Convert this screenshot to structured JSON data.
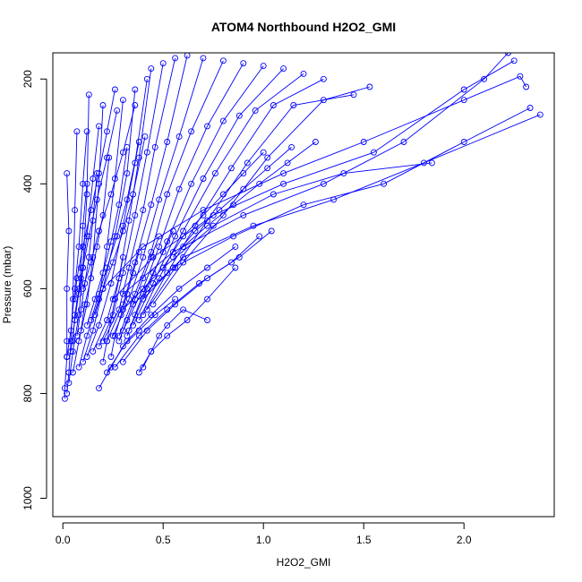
{
  "chart_data": {
    "type": "scatter",
    "title": "ATOM4 Northbound H2O2_GMI",
    "xlabel": "H2O2_GMI",
    "ylabel": "Pressure (mbar)",
    "xlim": [
      -0.05,
      2.45
    ],
    "ylim": [
      1035,
      150
    ],
    "y_reversed": true,
    "grid": false,
    "legend": "none",
    "series_color": "#0000ff",
    "marker": "open-circle",
    "connected": true,
    "xticks": [
      0.0,
      0.5,
      1.0,
      1.5,
      2.0
    ],
    "xtick_labels": [
      "0.0",
      "0.5",
      "1.0",
      "1.5",
      "2.0"
    ],
    "yticks": [
      200,
      400,
      600,
      800,
      1000
    ],
    "ytick_labels": [
      "200",
      "400",
      "600",
      "800",
      "1000"
    ],
    "profiles": [
      {
        "x": [
          0.01,
          0.01,
          0.02,
          0.02,
          0.02,
          0.03,
          0.02
        ],
        "y": [
          810,
          790,
          730,
          700,
          600,
          490,
          380
        ]
      },
      {
        "x": [
          0.02,
          0.03,
          0.04,
          0.05,
          0.06,
          0.07
        ],
        "y": [
          800,
          760,
          700,
          620,
          450,
          300
        ]
      },
      {
        "x": [
          0.03,
          0.05,
          0.08,
          0.1,
          0.12,
          0.13
        ],
        "y": [
          780,
          720,
          650,
          560,
          420,
          230
        ]
      },
      {
        "x": [
          0.05,
          0.08,
          0.12,
          0.15,
          0.18,
          0.2
        ],
        "y": [
          760,
          700,
          630,
          540,
          400,
          250
        ]
      },
      {
        "x": [
          0.08,
          0.12,
          0.18,
          0.22,
          0.26,
          0.3
        ],
        "y": [
          750,
          690,
          620,
          520,
          390,
          240
        ]
      },
      {
        "x": [
          0.1,
          0.15,
          0.2,
          0.26,
          0.32,
          0.36
        ],
        "y": [
          740,
          680,
          600,
          500,
          380,
          220
        ]
      },
      {
        "x": [
          0.12,
          0.18,
          0.24,
          0.3,
          0.36,
          0.42
        ],
        "y": [
          730,
          670,
          590,
          480,
          360,
          200
        ]
      },
      {
        "x": [
          0.15,
          0.22,
          0.28,
          0.33,
          0.38,
          0.44
        ],
        "y": [
          720,
          660,
          580,
          470,
          350,
          180
        ]
      },
      {
        "x": [
          0.18,
          0.25,
          0.3,
          0.36,
          0.42,
          0.5
        ],
        "y": [
          710,
          650,
          570,
          460,
          340,
          170
        ]
      },
      {
        "x": [
          0.2,
          0.28,
          0.33,
          0.4,
          0.46,
          0.56
        ],
        "y": [
          700,
          640,
          560,
          450,
          330,
          160
        ]
      },
      {
        "x": [
          0.22,
          0.3,
          0.36,
          0.44,
          0.52,
          0.62
        ],
        "y": [
          700,
          630,
          550,
          440,
          320,
          155
        ]
      },
      {
        "x": [
          0.25,
          0.33,
          0.4,
          0.48,
          0.58,
          0.7
        ],
        "y": [
          690,
          620,
          540,
          430,
          310,
          160
        ]
      },
      {
        "x": [
          0.28,
          0.36,
          0.44,
          0.52,
          0.64,
          0.8
        ],
        "y": [
          690,
          610,
          530,
          420,
          300,
          165
        ]
      },
      {
        "x": [
          0.3,
          0.4,
          0.48,
          0.58,
          0.72,
          0.9
        ],
        "y": [
          680,
          600,
          520,
          410,
          290,
          170
        ]
      },
      {
        "x": [
          0.33,
          0.42,
          0.52,
          0.64,
          0.8,
          1.0
        ],
        "y": [
          680,
          600,
          510,
          400,
          280,
          175
        ]
      },
      {
        "x": [
          0.35,
          0.45,
          0.56,
          0.7,
          0.88,
          1.1
        ],
        "y": [
          670,
          590,
          500,
          390,
          270,
          180
        ]
      },
      {
        "x": [
          0.38,
          0.48,
          0.6,
          0.76,
          0.96,
          1.2
        ],
        "y": [
          660,
          580,
          490,
          380,
          260,
          190
        ]
      },
      {
        "x": [
          0.4,
          0.52,
          0.66,
          0.84,
          1.05,
          1.3
        ],
        "y": [
          650,
          570,
          480,
          370,
          250,
          200
        ]
      },
      {
        "x": [
          0.42,
          0.56,
          0.72,
          0.92,
          1.15,
          1.45
        ],
        "y": [
          640,
          560,
          470,
          360,
          250,
          230
        ]
      },
      {
        "x": [
          0.45,
          0.6,
          0.8,
          1.02,
          1.3,
          1.53
        ],
        "y": [
          630,
          550,
          460,
          350,
          240,
          215
        ]
      },
      {
        "x": [
          0.3,
          0.5,
          0.75,
          1.05,
          1.4,
          1.84
        ],
        "y": [
          640,
          560,
          480,
          420,
          380,
          360
        ]
      },
      {
        "x": [
          0.35,
          0.55,
          0.85,
          1.2,
          1.6,
          2.0,
          2.33
        ],
        "y": [
          630,
          560,
          500,
          440,
          400,
          320,
          255
        ]
      },
      {
        "x": [
          0.4,
          0.6,
          0.95,
          1.35,
          1.8,
          2.38
        ],
        "y": [
          620,
          540,
          480,
          430,
          360,
          268
        ]
      },
      {
        "x": [
          0.2,
          0.4,
          0.7,
          1.1,
          1.5,
          2.0,
          2.28,
          2.31
        ],
        "y": [
          600,
          520,
          450,
          380,
          320,
          240,
          195,
          215
        ]
      },
      {
        "x": [
          0.25,
          0.45,
          0.75,
          1.1,
          1.55,
          2.0,
          2.25
        ],
        "y": [
          620,
          540,
          460,
          400,
          340,
          220,
          165
        ]
      },
      {
        "x": [
          0.3,
          0.55,
          0.9,
          1.3,
          1.7,
          2.1,
          2.22
        ],
        "y": [
          610,
          530,
          460,
          400,
          320,
          200,
          150
        ]
      },
      {
        "x": [
          0.22,
          0.32,
          0.44,
          0.58,
          0.72,
          0.86
        ],
        "y": [
          760,
          700,
          650,
          600,
          560,
          520
        ]
      },
      {
        "x": [
          0.26,
          0.38,
          0.52,
          0.68,
          0.84,
          0.98
        ],
        "y": [
          750,
          690,
          640,
          590,
          550,
          500
        ]
      },
      {
        "x": [
          0.3,
          0.42,
          0.56,
          0.72,
          0.88,
          1.04
        ],
        "y": [
          740,
          680,
          630,
          580,
          540,
          490
        ]
      },
      {
        "x": [
          0.18,
          0.24,
          0.3,
          0.38,
          0.46,
          0.56
        ],
        "y": [
          790,
          750,
          710,
          680,
          650,
          620
        ]
      },
      {
        "x": [
          0.4,
          0.44,
          0.48,
          0.52,
          0.6,
          0.72
        ],
        "y": [
          750,
          720,
          690,
          670,
          640,
          660
        ]
      },
      {
        "x": [
          0.38,
          0.44,
          0.52,
          0.62,
          0.72,
          0.86
        ],
        "y": [
          760,
          720,
          690,
          660,
          620,
          560
        ]
      },
      {
        "x": [
          0.05,
          0.06,
          0.08,
          0.09,
          0.1,
          0.12
        ],
        "y": [
          700,
          650,
          600,
          560,
          480,
          400
        ]
      },
      {
        "x": [
          0.07,
          0.09,
          0.11,
          0.13,
          0.15,
          0.17
        ],
        "y": [
          690,
          640,
          590,
          540,
          470,
          380
        ]
      },
      {
        "x": [
          0.09,
          0.11,
          0.14,
          0.17,
          0.2,
          0.23
        ],
        "y": [
          680,
          630,
          580,
          520,
          460,
          350
        ]
      },
      {
        "x": [
          0.12,
          0.16,
          0.2,
          0.24,
          0.28,
          0.32
        ],
        "y": [
          670,
          620,
          570,
          510,
          440,
          330
        ]
      },
      {
        "x": [
          0.14,
          0.18,
          0.22,
          0.27,
          0.32,
          0.38
        ],
        "y": [
          660,
          610,
          560,
          500,
          430,
          320
        ]
      },
      {
        "x": [
          0.16,
          0.2,
          0.25,
          0.3,
          0.35,
          0.41
        ],
        "y": [
          650,
          600,
          550,
          490,
          420,
          310
        ]
      },
      {
        "x": [
          0.06,
          0.07,
          0.1,
          0.14,
          0.18,
          0.22,
          0.26
        ],
        "y": [
          620,
          580,
          520,
          450,
          380,
          300,
          220
        ]
      },
      {
        "x": [
          0.08,
          0.1,
          0.13,
          0.17,
          0.22,
          0.27
        ],
        "y": [
          610,
          560,
          500,
          430,
          350,
          260
        ]
      },
      {
        "x": [
          0.1,
          0.14,
          0.18,
          0.24,
          0.3,
          0.36
        ],
        "y": [
          600,
          550,
          490,
          420,
          340,
          250
        ]
      },
      {
        "x": [
          0.02,
          0.04,
          0.06,
          0.08,
          0.1,
          0.12
        ],
        "y": [
          730,
          680,
          600,
          520,
          400,
          300
        ]
      },
      {
        "x": [
          0.04,
          0.06,
          0.09,
          0.12,
          0.15,
          0.18
        ],
        "y": [
          720,
          660,
          580,
          500,
          390,
          290
        ]
      },
      {
        "x": [
          0.28,
          0.32,
          0.36,
          0.4,
          0.44,
          0.48
        ],
        "y": [
          700,
          660,
          620,
          580,
          540,
          500
        ]
      },
      {
        "x": [
          0.32,
          0.36,
          0.4,
          0.45,
          0.5,
          0.55
        ],
        "y": [
          690,
          650,
          610,
          570,
          530,
          490
        ]
      },
      {
        "x": [
          0.2,
          0.22,
          0.24,
          0.26,
          0.28,
          0.3
        ],
        "y": [
          740,
          700,
          660,
          620,
          580,
          540
        ]
      },
      {
        "x": [
          0.24,
          0.26,
          0.29,
          0.32,
          0.35,
          0.38
        ],
        "y": [
          730,
          690,
          650,
          610,
          570,
          530
        ]
      },
      {
        "x": [
          0.5,
          0.6,
          0.7,
          0.8,
          0.9,
          1.0
        ],
        "y": [
          560,
          500,
          460,
          420,
          380,
          340
        ]
      },
      {
        "x": [
          0.55,
          0.66,
          0.78,
          0.9,
          1.02,
          1.14
        ],
        "y": [
          540,
          490,
          450,
          410,
          370,
          330
        ]
      },
      {
        "x": [
          0.6,
          0.72,
          0.85,
          0.98,
          1.12,
          1.26
        ],
        "y": [
          520,
          480,
          440,
          400,
          360,
          320
        ]
      }
    ]
  }
}
